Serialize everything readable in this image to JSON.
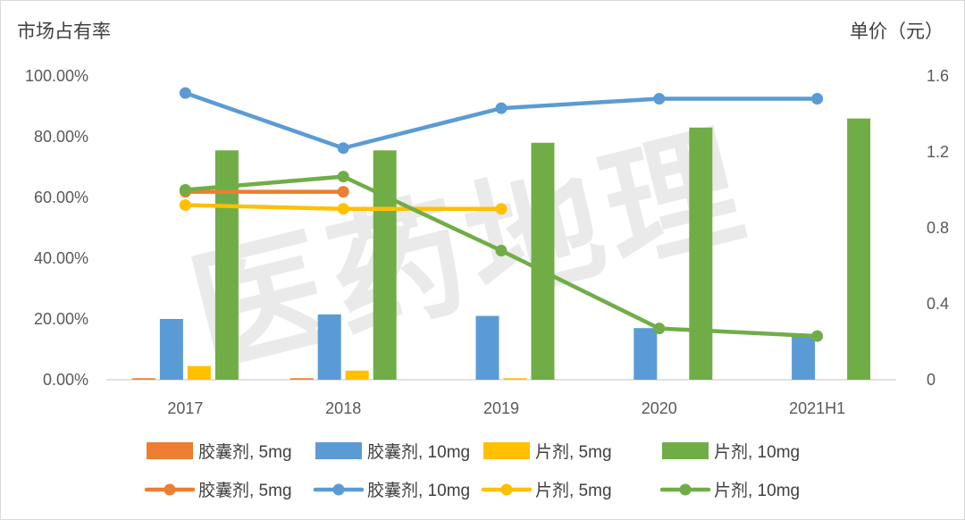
{
  "chart_data": {
    "type": "bar",
    "combo": "bar + line, dual y-axis",
    "categories": [
      "2017",
      "2018",
      "2019",
      "2020",
      "2021H1"
    ],
    "left_axis": {
      "title": "市场占有率",
      "ylim": [
        0,
        100
      ],
      "ticks": [
        "0.00%",
        "20.00%",
        "40.00%",
        "60.00%",
        "80.00%",
        "100.00%"
      ]
    },
    "right_axis": {
      "title": "单价（元）",
      "ylim": [
        0,
        1.6
      ],
      "ticks": [
        "0",
        "0.4",
        "0.8",
        "1.2",
        "1.6"
      ]
    },
    "bar_series": [
      {
        "name": "胶囊剂, 5mg",
        "color": "#ED7D31",
        "values": [
          0.5,
          0.5,
          null,
          null,
          null
        ]
      },
      {
        "name": "胶囊剂, 10mg",
        "color": "#5B9BD5",
        "values": [
          20,
          21.5,
          21,
          17,
          14.5
        ]
      },
      {
        "name": "片剂, 5mg",
        "color": "#FFC000",
        "values": [
          4.5,
          3,
          0.5,
          null,
          null
        ]
      },
      {
        "name": "片剂, 10mg",
        "color": "#70AD47",
        "values": [
          75.5,
          75.5,
          78,
          83,
          86
        ]
      }
    ],
    "line_series": [
      {
        "name": "胶囊剂, 5mg",
        "color": "#ED7D31",
        "values": [
          0.99,
          0.99,
          null,
          null,
          null
        ]
      },
      {
        "name": "胶囊剂, 10mg",
        "color": "#5B9BD5",
        "values": [
          1.51,
          1.22,
          1.43,
          1.48,
          1.48
        ]
      },
      {
        "name": "片剂, 5mg",
        "color": "#FFC000",
        "values": [
          0.92,
          0.9,
          0.9,
          null,
          null
        ]
      },
      {
        "name": "片剂, 10mg",
        "color": "#70AD47",
        "values": [
          1.0,
          1.07,
          0.68,
          0.27,
          0.23
        ]
      }
    ],
    "legend_position": "bottom",
    "grid": false,
    "watermark": "医药地理"
  }
}
